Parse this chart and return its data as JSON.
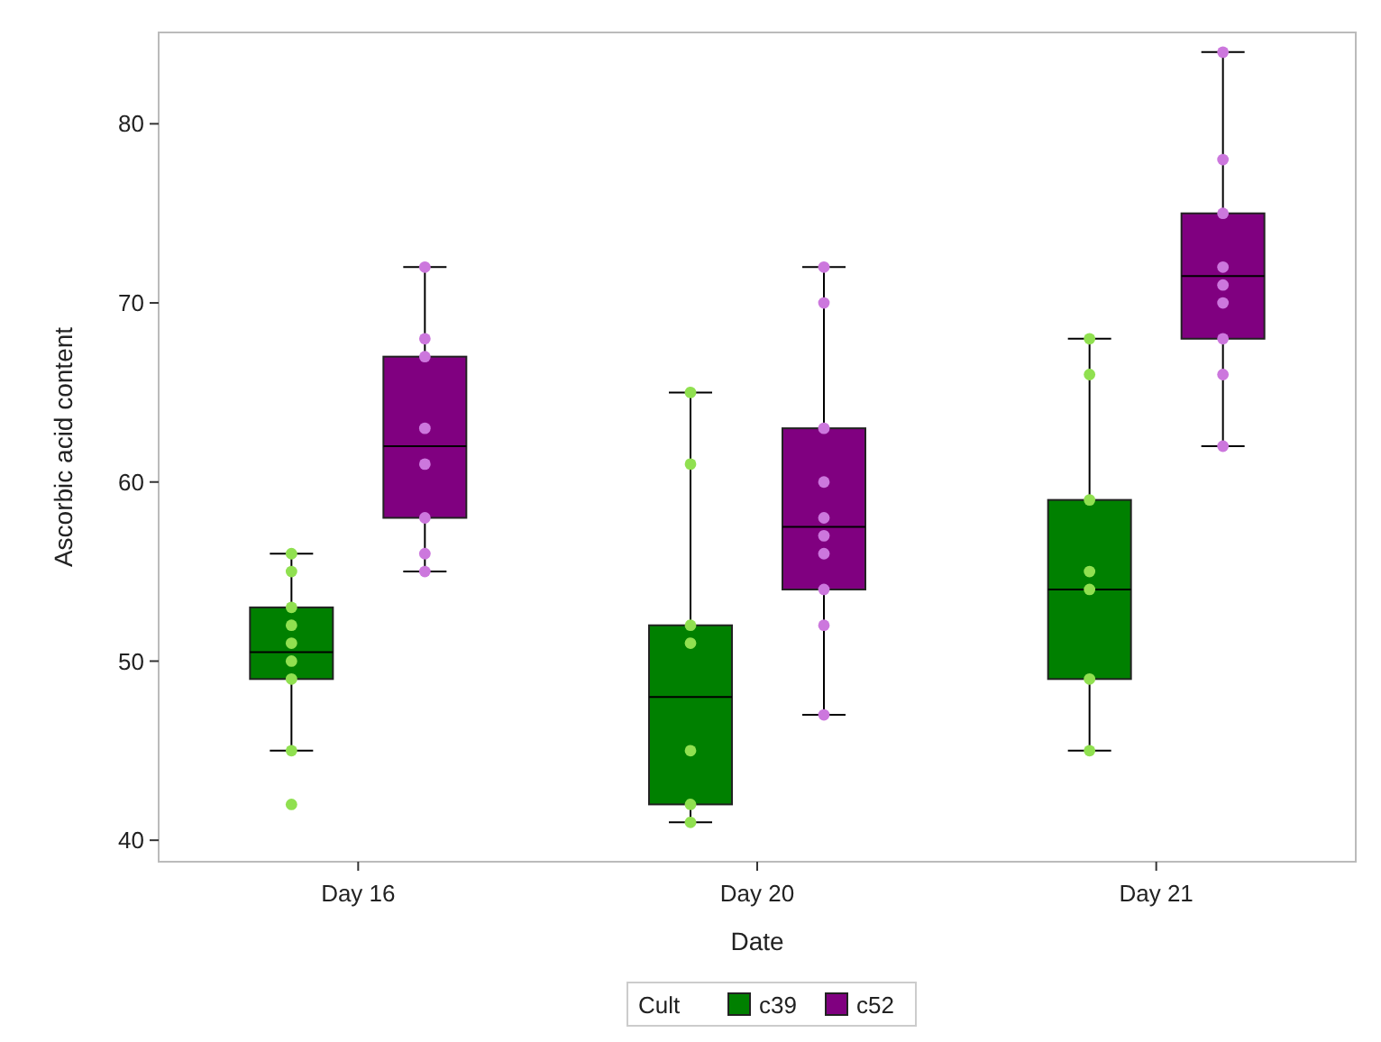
{
  "chart_data": {
    "type": "box",
    "xlabel": "Date",
    "ylabel": "Ascorbic acid content",
    "legend_title": "Cult",
    "legend": "bottom",
    "categories": [
      "Day 16",
      "Day 20",
      "Day 21"
    ],
    "ylim": [
      38.8,
      85.1
    ],
    "yticks": [
      40,
      50,
      60,
      70,
      80
    ],
    "series": [
      {
        "name": "c39",
        "color": "#008000",
        "boxes": [
          {
            "low": 45,
            "q1": 49,
            "median": 50.5,
            "q3": 53,
            "high": 56
          },
          {
            "low": 41,
            "q1": 42,
            "median": 48,
            "q3": 52,
            "high": 65
          },
          {
            "low": 45,
            "q1": 49,
            "median": 54,
            "q3": 59,
            "high": 68
          }
        ]
      },
      {
        "name": "c52",
        "color": "#800080",
        "boxes": [
          {
            "low": 55,
            "q1": 58,
            "median": 62,
            "q3": 67,
            "high": 72
          },
          {
            "low": 47,
            "q1": 54,
            "median": 57.5,
            "q3": 63,
            "high": 72
          },
          {
            "low": 62,
            "q1": 68,
            "median": 71.5,
            "q3": 75,
            "high": 84
          }
        ]
      },
      {
        "type": "scatter",
        "color": "#90e050",
        "x": [
          "Day 16",
          "Day 16",
          "Day 16",
          "Day 16",
          "Day 16",
          "Day 16",
          "Day 16",
          "Day 16",
          "Day 16",
          "Day 20",
          "Day 20",
          "Day 20",
          "Day 20",
          "Day 20",
          "Day 20",
          "Day 20",
          "Day 21",
          "Day 21",
          "Day 21",
          "Day 21",
          "Day 21",
          "Day 21",
          "Day 21"
        ],
        "values": [
          56,
          55,
          53,
          52,
          51,
          50,
          49,
          45,
          42,
          65,
          61,
          52,
          51,
          45,
          42,
          41,
          68,
          66,
          59,
          55,
          54,
          49,
          45
        ]
      },
      {
        "type": "scatter",
        "color": "#cc77dd",
        "x": [
          "Day 16",
          "Day 16",
          "Day 16",
          "Day 16",
          "Day 16",
          "Day 16",
          "Day 16",
          "Day 16",
          "Day 20",
          "Day 20",
          "Day 20",
          "Day 20",
          "Day 20",
          "Day 20",
          "Day 20",
          "Day 20",
          "Day 20",
          "Day 20",
          "Day 21",
          "Day 21",
          "Day 21",
          "Day 21",
          "Day 21",
          "Day 21",
          "Day 21",
          "Day 21",
          "Day 21"
        ],
        "values": [
          72,
          68,
          67,
          63,
          61,
          58,
          56,
          55,
          72,
          70,
          63,
          60,
          58,
          57,
          56,
          54,
          52,
          47,
          84,
          78,
          75,
          72,
          71,
          70,
          68,
          66,
          62
        ]
      }
    ]
  }
}
